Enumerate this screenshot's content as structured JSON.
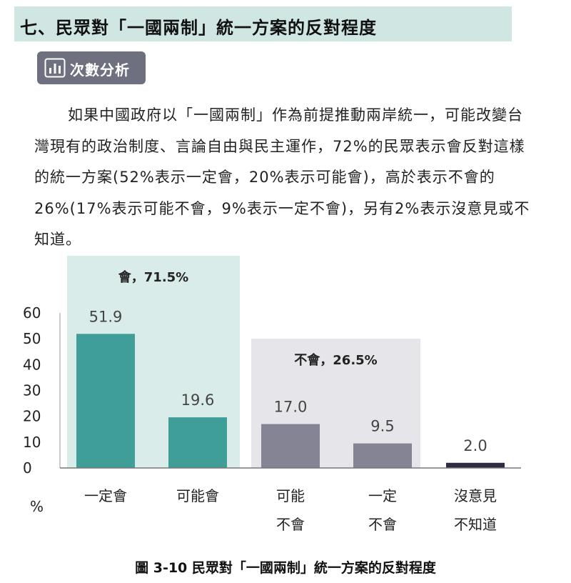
{
  "section": {
    "title": "七、民眾對「一國兩制」統一方案的反對程度"
  },
  "badge": {
    "label": "次數分析",
    "icon": "bar-chart-icon"
  },
  "intro": {
    "text": "如果中國政府以「一國兩制」作為前提推動兩岸統一，可能改變台灣現有的政治制度、言論自由與民主運作，72%的民眾表示會反對這樣的統一方案(52%表示一定會，20%表示可能會)，高於表示不會的 26%(17%表示可能不會，9%表示一定不會)，另有2%表示沒意見或不知道。"
  },
  "chart_data": {
    "type": "bar",
    "categories": [
      [
        "一定會"
      ],
      [
        "可能會"
      ],
      [
        "可能",
        "不會"
      ],
      [
        "一定",
        "不會"
      ],
      [
        "沒意見",
        "不知道"
      ]
    ],
    "values": [
      51.9,
      19.6,
      17.0,
      9.5,
      2.0
    ],
    "value_labels": [
      "51.9",
      "19.6",
      "17.0",
      "9.5",
      "2.0"
    ],
    "ylim": [
      0,
      60
    ],
    "yticks": [
      "0",
      "10",
      "20",
      "30",
      "40",
      "50",
      "60"
    ],
    "ylabel": "%",
    "groups": [
      {
        "label": "會，71.5%",
        "members": [
          0,
          1
        ]
      },
      {
        "label": "不會，26.5%",
        "members": [
          2,
          3
        ]
      }
    ],
    "bar_colors": [
      "#3f9e98",
      "#3f9e98",
      "#858494",
      "#858494",
      "#2e2b45"
    ],
    "group_colors": [
      "#d9ecea",
      "#e5e5ea"
    ],
    "grid": false
  },
  "caption": {
    "text": "圖 3-10 民眾對「一國兩制」統一方案的反對程度"
  }
}
